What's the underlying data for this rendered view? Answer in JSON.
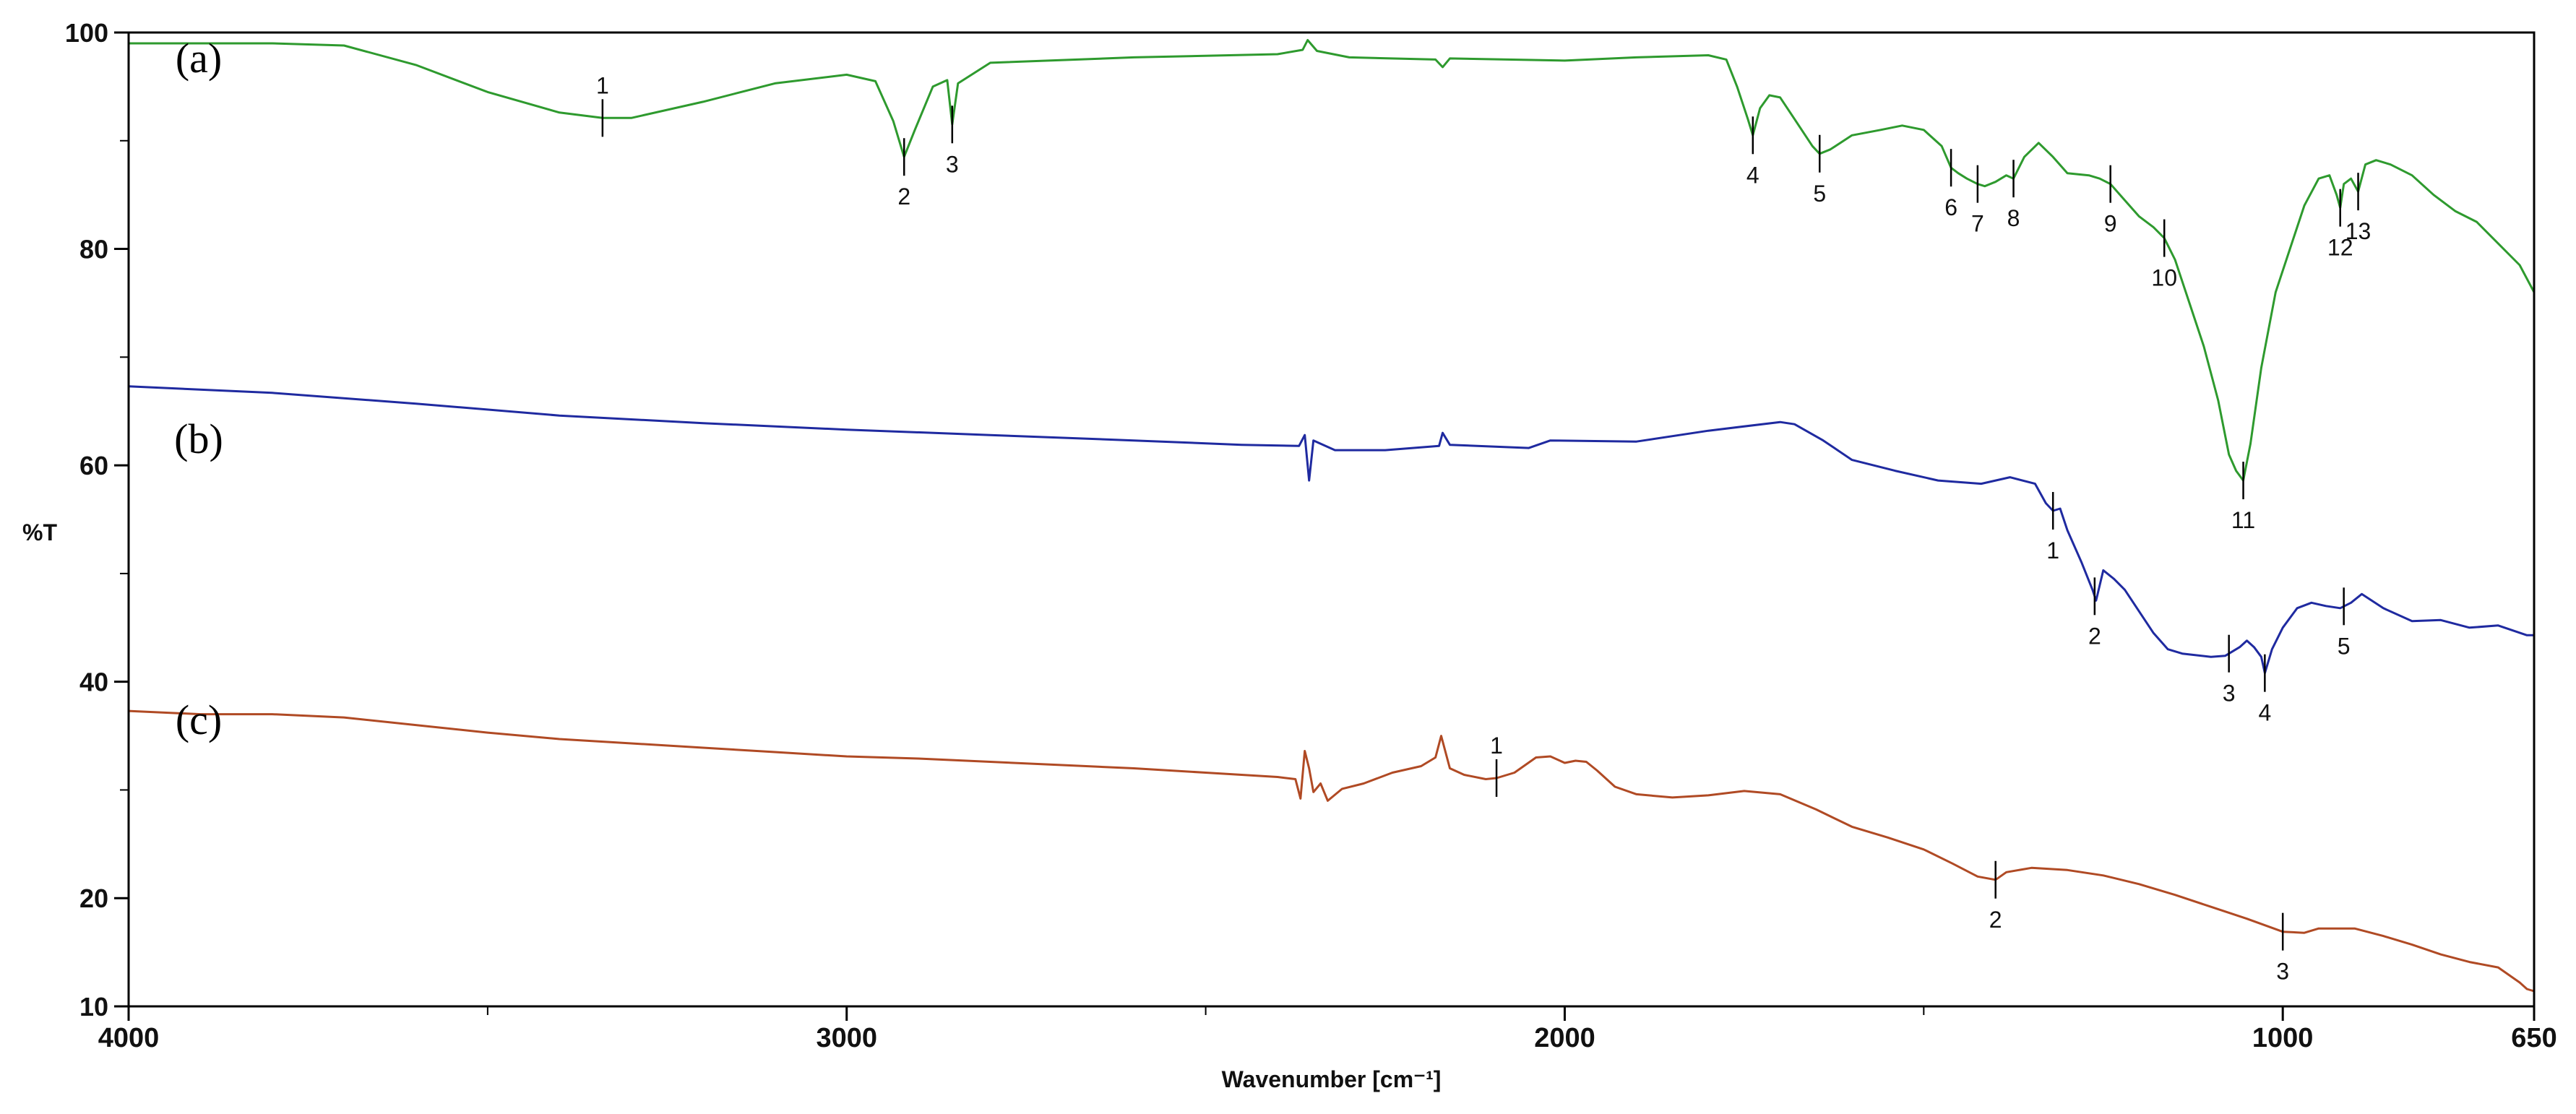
{
  "chart_data": {
    "type": "line",
    "title": "",
    "xlabel": "Wavenumber [cm⁻¹]",
    "ylabel": "%T",
    "xlim": [
      4000,
      650
    ],
    "ylim": [
      10,
      100
    ],
    "x_ticks": [
      {
        "value": 4000,
        "label": "4000"
      },
      {
        "value": 3000,
        "label": "3000"
      },
      {
        "value": 2000,
        "label": "2000"
      },
      {
        "value": 1000,
        "label": "1000"
      },
      {
        "value": 650,
        "label": "650"
      }
    ],
    "y_ticks": [
      {
        "value": 100,
        "label": "100"
      },
      {
        "value": 80,
        "label": "80"
      },
      {
        "value": 60,
        "label": "60"
      },
      {
        "value": 40,
        "label": "40"
      },
      {
        "value": 20,
        "label": "20"
      },
      {
        "value": 10,
        "label": "10"
      }
    ],
    "grid": false,
    "series": [
      {
        "name": "(a)",
        "color": "#2e9a2e",
        "points": [
          [
            4000,
            99.0
          ],
          [
            3800,
            99.0
          ],
          [
            3700,
            98.8
          ],
          [
            3600,
            97.0
          ],
          [
            3500,
            94.5
          ],
          [
            3400,
            92.6
          ],
          [
            3340,
            92.1
          ],
          [
            3300,
            92.1
          ],
          [
            3200,
            93.6
          ],
          [
            3100,
            95.3
          ],
          [
            3000,
            96.1
          ],
          [
            2960,
            95.5
          ],
          [
            2935,
            91.8
          ],
          [
            2920,
            88.5
          ],
          [
            2905,
            91.0
          ],
          [
            2880,
            95.0
          ],
          [
            2860,
            95.6
          ],
          [
            2853,
            91.5
          ],
          [
            2845,
            95.3
          ],
          [
            2800,
            97.2
          ],
          [
            2600,
            97.7
          ],
          [
            2400,
            98.0
          ],
          [
            2365,
            98.4
          ],
          [
            2358,
            99.3
          ],
          [
            2345,
            98.3
          ],
          [
            2300,
            97.7
          ],
          [
            2180,
            97.5
          ],
          [
            2170,
            96.8
          ],
          [
            2160,
            97.6
          ],
          [
            2000,
            97.4
          ],
          [
            1900,
            97.7
          ],
          [
            1800,
            97.9
          ],
          [
            1775,
            97.5
          ],
          [
            1760,
            95.0
          ],
          [
            1745,
            92.0
          ],
          [
            1738,
            90.5
          ],
          [
            1728,
            93.0
          ],
          [
            1715,
            94.2
          ],
          [
            1700,
            94.0
          ],
          [
            1680,
            92.0
          ],
          [
            1655,
            89.5
          ],
          [
            1645,
            88.8
          ],
          [
            1630,
            89.2
          ],
          [
            1600,
            90.5
          ],
          [
            1560,
            91.0
          ],
          [
            1530,
            91.4
          ],
          [
            1500,
            91.0
          ],
          [
            1475,
            89.5
          ],
          [
            1462,
            87.5
          ],
          [
            1452,
            87.0
          ],
          [
            1440,
            86.5
          ],
          [
            1425,
            86.0
          ],
          [
            1415,
            85.8
          ],
          [
            1400,
            86.2
          ],
          [
            1385,
            86.8
          ],
          [
            1375,
            86.5
          ],
          [
            1360,
            88.5
          ],
          [
            1340,
            89.8
          ],
          [
            1320,
            88.5
          ],
          [
            1300,
            87.0
          ],
          [
            1270,
            86.8
          ],
          [
            1255,
            86.5
          ],
          [
            1240,
            86.0
          ],
          [
            1220,
            84.5
          ],
          [
            1200,
            83.0
          ],
          [
            1180,
            82.0
          ],
          [
            1165,
            81.0
          ],
          [
            1150,
            79.0
          ],
          [
            1130,
            75.0
          ],
          [
            1110,
            71.0
          ],
          [
            1090,
            66.0
          ],
          [
            1075,
            61.0
          ],
          [
            1065,
            59.5
          ],
          [
            1055,
            58.6
          ],
          [
            1045,
            62.0
          ],
          [
            1030,
            69.0
          ],
          [
            1010,
            76.0
          ],
          [
            990,
            80.0
          ],
          [
            970,
            84.0
          ],
          [
            950,
            86.5
          ],
          [
            935,
            86.8
          ],
          [
            925,
            85.0
          ],
          [
            920,
            83.8
          ],
          [
            915,
            86.0
          ],
          [
            905,
            86.5
          ],
          [
            895,
            85.3
          ],
          [
            885,
            87.8
          ],
          [
            870,
            88.2
          ],
          [
            850,
            87.8
          ],
          [
            820,
            86.8
          ],
          [
            790,
            85.0
          ],
          [
            760,
            83.5
          ],
          [
            730,
            82.5
          ],
          [
            700,
            80.5
          ],
          [
            670,
            78.5
          ],
          [
            650,
            76.0
          ]
        ],
        "peaks": [
          {
            "label": "1",
            "x": 3340
          },
          {
            "label": "2",
            "x": 2920
          },
          {
            "label": "3",
            "x": 2853
          },
          {
            "label": "4",
            "x": 1738
          },
          {
            "label": "5",
            "x": 1645
          },
          {
            "label": "6",
            "x": 1462
          },
          {
            "label": "7",
            "x": 1425
          },
          {
            "label": "8",
            "x": 1375
          },
          {
            "label": "9",
            "x": 1240
          },
          {
            "label": "10",
            "x": 1165
          },
          {
            "label": "11",
            "x": 1055
          },
          {
            "label": "12",
            "x": 920
          },
          {
            "label": "13",
            "x": 895
          }
        ]
      },
      {
        "name": "(b)",
        "color": "#1f2aa0",
        "points": [
          [
            4000,
            67.3
          ],
          [
            3800,
            66.7
          ],
          [
            3600,
            65.7
          ],
          [
            3400,
            64.6
          ],
          [
            3200,
            63.9
          ],
          [
            3000,
            63.3
          ],
          [
            2800,
            62.8
          ],
          [
            2600,
            62.3
          ],
          [
            2450,
            61.9
          ],
          [
            2370,
            61.8
          ],
          [
            2362,
            62.8
          ],
          [
            2356,
            58.6
          ],
          [
            2350,
            62.3
          ],
          [
            2320,
            61.4
          ],
          [
            2250,
            61.4
          ],
          [
            2175,
            61.8
          ],
          [
            2170,
            63.0
          ],
          [
            2160,
            61.9
          ],
          [
            2050,
            61.6
          ],
          [
            2020,
            62.3
          ],
          [
            1900,
            62.2
          ],
          [
            1800,
            63.2
          ],
          [
            1700,
            64.0
          ],
          [
            1680,
            63.8
          ],
          [
            1640,
            62.3
          ],
          [
            1600,
            60.5
          ],
          [
            1540,
            59.5
          ],
          [
            1480,
            58.6
          ],
          [
            1420,
            58.3
          ],
          [
            1380,
            58.9
          ],
          [
            1345,
            58.3
          ],
          [
            1330,
            56.5
          ],
          [
            1320,
            55.8
          ],
          [
            1310,
            56.0
          ],
          [
            1300,
            54.0
          ],
          [
            1280,
            51.0
          ],
          [
            1265,
            48.5
          ],
          [
            1260,
            47.5
          ],
          [
            1250,
            50.3
          ],
          [
            1235,
            49.5
          ],
          [
            1220,
            48.5
          ],
          [
            1200,
            46.5
          ],
          [
            1180,
            44.5
          ],
          [
            1160,
            43.0
          ],
          [
            1140,
            42.6
          ],
          [
            1100,
            42.3
          ],
          [
            1080,
            42.4
          ],
          [
            1060,
            43.2
          ],
          [
            1050,
            43.8
          ],
          [
            1040,
            43.2
          ],
          [
            1030,
            42.3
          ],
          [
            1025,
            40.8
          ],
          [
            1015,
            43.0
          ],
          [
            1000,
            45.0
          ],
          [
            980,
            46.8
          ],
          [
            960,
            47.3
          ],
          [
            940,
            47.0
          ],
          [
            920,
            46.8
          ],
          [
            905,
            47.3
          ],
          [
            890,
            48.1
          ],
          [
            860,
            46.8
          ],
          [
            820,
            45.6
          ],
          [
            780,
            45.7
          ],
          [
            740,
            45.0
          ],
          [
            700,
            45.2
          ],
          [
            660,
            44.3
          ],
          [
            650,
            44.3
          ]
        ],
        "peaks": [
          {
            "label": "1",
            "x": 1320
          },
          {
            "label": "2",
            "x": 1262
          },
          {
            "label": "3",
            "x": 1075
          },
          {
            "label": "4",
            "x": 1025
          },
          {
            "label": "5",
            "x": 915
          }
        ]
      },
      {
        "name": "(c)",
        "color": "#b04a24",
        "points": [
          [
            4000,
            37.3
          ],
          [
            3900,
            37.0
          ],
          [
            3800,
            37.0
          ],
          [
            3700,
            36.7
          ],
          [
            3600,
            36.0
          ],
          [
            3500,
            35.3
          ],
          [
            3400,
            34.7
          ],
          [
            3300,
            34.3
          ],
          [
            3200,
            33.9
          ],
          [
            3100,
            33.5
          ],
          [
            3000,
            33.1
          ],
          [
            2900,
            32.9
          ],
          [
            2800,
            32.6
          ],
          [
            2700,
            32.3
          ],
          [
            2600,
            32.0
          ],
          [
            2500,
            31.6
          ],
          [
            2400,
            31.2
          ],
          [
            2375,
            31.0
          ],
          [
            2368,
            29.2
          ],
          [
            2362,
            33.6
          ],
          [
            2356,
            32.0
          ],
          [
            2350,
            29.8
          ],
          [
            2340,
            30.6
          ],
          [
            2330,
            29.0
          ],
          [
            2310,
            30.1
          ],
          [
            2280,
            30.6
          ],
          [
            2240,
            31.6
          ],
          [
            2200,
            32.2
          ],
          [
            2180,
            33.0
          ],
          [
            2172,
            35.0
          ],
          [
            2160,
            32.0
          ],
          [
            2140,
            31.4
          ],
          [
            2110,
            31.0
          ],
          [
            2095,
            31.1
          ],
          [
            2070,
            31.6
          ],
          [
            2040,
            33.0
          ],
          [
            2020,
            33.1
          ],
          [
            2000,
            32.5
          ],
          [
            1985,
            32.7
          ],
          [
            1970,
            32.6
          ],
          [
            1955,
            31.8
          ],
          [
            1930,
            30.3
          ],
          [
            1900,
            29.6
          ],
          [
            1850,
            29.3
          ],
          [
            1800,
            29.5
          ],
          [
            1750,
            29.9
          ],
          [
            1700,
            29.6
          ],
          [
            1650,
            28.2
          ],
          [
            1600,
            26.6
          ],
          [
            1550,
            25.6
          ],
          [
            1500,
            24.5
          ],
          [
            1460,
            23.2
          ],
          [
            1425,
            22.0
          ],
          [
            1400,
            21.7
          ],
          [
            1385,
            22.4
          ],
          [
            1350,
            22.8
          ],
          [
            1300,
            22.6
          ],
          [
            1250,
            22.1
          ],
          [
            1200,
            21.3
          ],
          [
            1150,
            20.3
          ],
          [
            1100,
            19.2
          ],
          [
            1050,
            18.1
          ],
          [
            1000,
            16.9
          ],
          [
            970,
            16.8
          ],
          [
            950,
            17.2
          ],
          [
            900,
            17.2
          ],
          [
            860,
            16.5
          ],
          [
            820,
            15.7
          ],
          [
            780,
            14.8
          ],
          [
            740,
            14.1
          ],
          [
            700,
            13.6
          ],
          [
            670,
            12.2
          ],
          [
            660,
            11.6
          ],
          [
            650,
            11.4
          ]
        ],
        "peaks": [
          {
            "label": "1",
            "x": 2095
          },
          {
            "label": "2",
            "x": 1400
          },
          {
            "label": "3",
            "x": 1000
          }
        ]
      }
    ]
  }
}
